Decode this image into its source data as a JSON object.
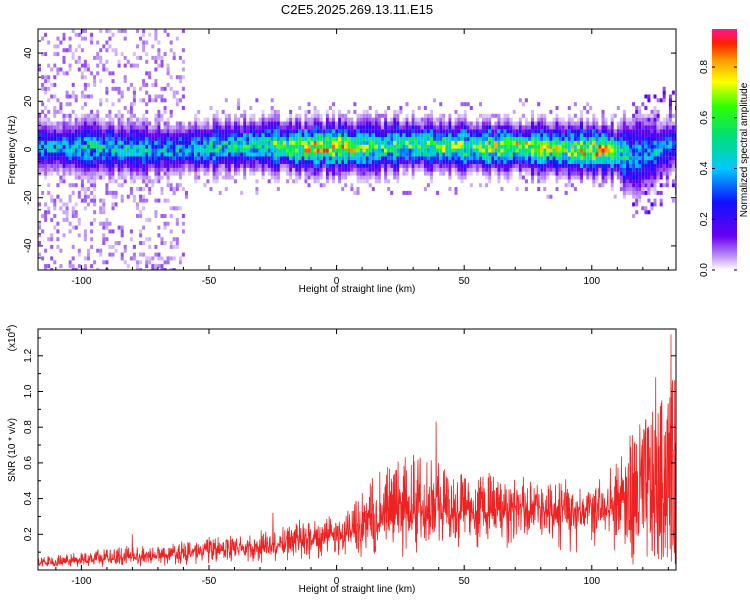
{
  "title": "C2E5.2025.269.13.11.E15",
  "chart_data": [
    {
      "type": "heatmap",
      "title": "C2E5.2025.269.13.11.E15",
      "xlabel": "Height of straight line (km)",
      "ylabel": "Frequency (Hz)",
      "xlim": [
        -117,
        133
      ],
      "ylim": [
        -50,
        50
      ],
      "xticks": [
        -100,
        -50,
        0,
        50,
        100
      ],
      "xtick_labels": [
        "-100",
        "-50",
        "0",
        "50",
        "100"
      ],
      "yticks": [
        -40,
        -20,
        0,
        20,
        40
      ],
      "ytick_labels": [
        "-40",
        "-20",
        "0",
        "20",
        "40"
      ],
      "colorbar": {
        "label": "Normalized spectral amplitude",
        "range": [
          0,
          0.95
        ],
        "ticks": [
          0.0,
          0.2,
          0.4,
          0.6,
          0.8
        ],
        "tick_labels": [
          "0.0",
          "0.2",
          "0.4",
          "0.6",
          "0.8"
        ]
      },
      "band_center_hz": [
        [
          -117,
          1
        ],
        [
          -100,
          1
        ],
        [
          -80,
          0
        ],
        [
          -65,
          0
        ],
        [
          -50,
          1
        ],
        [
          -30,
          2
        ],
        [
          -15,
          1
        ],
        [
          0,
          1
        ],
        [
          15,
          1
        ],
        [
          30,
          2
        ],
        [
          50,
          1
        ],
        [
          70,
          1
        ],
        [
          90,
          0
        ],
        [
          100,
          0
        ],
        [
          110,
          -1
        ],
        [
          115,
          -3
        ],
        [
          120,
          -2
        ],
        [
          133,
          2
        ]
      ],
      "band_peak_amplitude": [
        [
          -117,
          0.45
        ],
        [
          -100,
          0.5
        ],
        [
          -80,
          0.5
        ],
        [
          -65,
          0.45
        ],
        [
          -50,
          0.55
        ],
        [
          -30,
          0.6
        ],
        [
          -15,
          0.8
        ],
        [
          0,
          0.85
        ],
        [
          15,
          0.65
        ],
        [
          30,
          0.65
        ],
        [
          50,
          0.7
        ],
        [
          70,
          0.8
        ],
        [
          90,
          0.75
        ],
        [
          105,
          0.9
        ],
        [
          115,
          0.45
        ],
        [
          133,
          0.4
        ]
      ]
    },
    {
      "type": "line",
      "xlabel": "Height of straight line (km)",
      "ylabel": "SNR (10 * v/v)",
      "y_multiplier_label": "(x10",
      "y_multiplier_exponent": "4",
      "y_multiplier_close": ")",
      "xlim": [
        -117,
        133
      ],
      "ylim": [
        0,
        1.35
      ],
      "xticks": [
        -100,
        -50,
        0,
        50,
        100
      ],
      "xtick_labels": [
        "-100",
        "-50",
        "0",
        "50",
        "100"
      ],
      "yticks": [
        0.2,
        0.4,
        0.6,
        0.8,
        1.0,
        1.2
      ],
      "ytick_labels": [
        "0.2",
        "0.4",
        "0.6",
        "0.8",
        "1.0",
        "1.2"
      ],
      "color": "#ee2222",
      "envelope": {
        "x": [
          -117,
          -100,
          -80,
          -60,
          -40,
          -20,
          -5,
          5,
          15,
          25,
          35,
          45,
          55,
          70,
          85,
          100,
          112,
          116,
          125,
          133
        ],
        "base": [
          0.03,
          0.05,
          0.07,
          0.09,
          0.11,
          0.14,
          0.18,
          0.22,
          0.25,
          0.3,
          0.33,
          0.32,
          0.34,
          0.34,
          0.34,
          0.35,
          0.35,
          0.25,
          0.2,
          0.22
        ],
        "peak": [
          0.07,
          0.11,
          0.14,
          0.17,
          0.2,
          0.27,
          0.32,
          0.36,
          0.55,
          0.65,
          0.7,
          0.58,
          0.56,
          0.55,
          0.52,
          0.52,
          0.65,
          0.8,
          0.9,
          1.1
        ]
      },
      "spikes": [
        [
          39,
          0.83
        ],
        [
          125,
          1.08
        ],
        [
          131,
          1.32
        ],
        [
          -80,
          0.2
        ],
        [
          -25,
          0.32
        ]
      ]
    }
  ]
}
